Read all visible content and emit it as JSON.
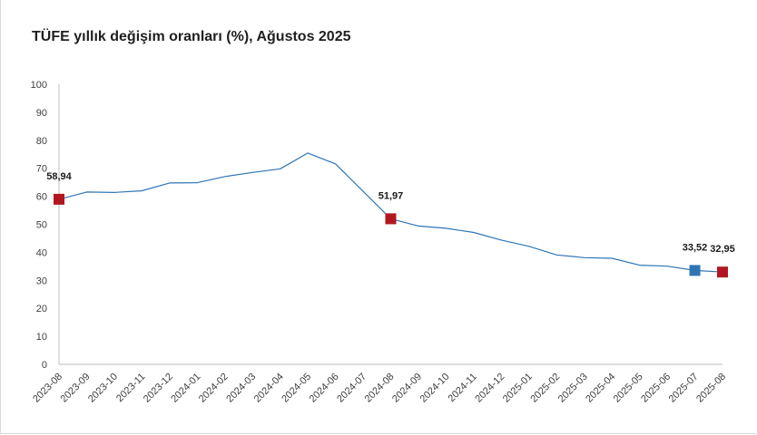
{
  "title": "TÜFE yıllık değişim oranları (%), Ağustos 2025",
  "colors": {
    "line": "#2e75b6",
    "marker_red": "#b2171f",
    "marker_blue": "#2e75b6",
    "axis": "#bfbfbf"
  },
  "chart_data": {
    "type": "line",
    "title": "TÜFE yıllık değişim oranları (%), Ağustos 2025",
    "xlabel": "",
    "ylabel": "",
    "ylim": [
      0,
      100
    ],
    "yticks": [
      0,
      10,
      20,
      30,
      40,
      50,
      60,
      70,
      80,
      90,
      100
    ],
    "grid": false,
    "categories": [
      "2023-08",
      "2023-09",
      "2023-10",
      "2023-11",
      "2023-12",
      "2024-01",
      "2024-02",
      "2024-03",
      "2024-04",
      "2024-05",
      "2024-06",
      "2024-07",
      "2024-08",
      "2024-09",
      "2024-10",
      "2024-11",
      "2024-12",
      "2025-01",
      "2025-02",
      "2025-03",
      "2025-04",
      "2025-05",
      "2025-06",
      "2025-07",
      "2025-08"
    ],
    "series": [
      {
        "values": [
          58.94,
          61.53,
          61.36,
          61.98,
          64.77,
          64.86,
          67.07,
          68.5,
          69.8,
          75.45,
          71.6,
          61.78,
          51.97,
          49.38,
          48.58,
          47.09,
          44.38,
          42.12,
          39.05,
          38.1,
          37.86,
          35.41,
          35.05,
          33.52,
          32.95
        ]
      }
    ],
    "highlighted_points": [
      {
        "category": "2023-08",
        "value": 58.94,
        "label": "58,94",
        "color": "red"
      },
      {
        "category": "2024-08",
        "value": 51.97,
        "label": "51,97",
        "color": "red"
      },
      {
        "category": "2025-07",
        "value": 33.52,
        "label": "33,52",
        "color": "blue"
      },
      {
        "category": "2025-08",
        "value": 32.95,
        "label": "32,95",
        "color": "red"
      }
    ]
  }
}
